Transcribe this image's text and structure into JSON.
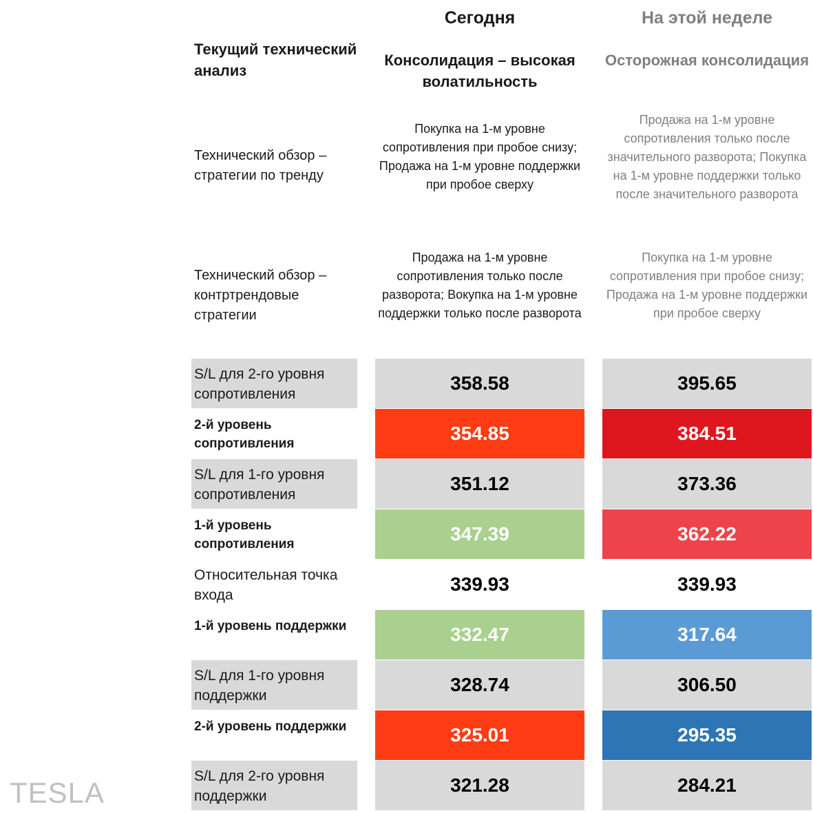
{
  "columns": {
    "today": "Сегодня",
    "week": "На этой неделе"
  },
  "section_title": "Текущий технический анализ",
  "modes": {
    "today": "Консолидация – высокая волатильность",
    "week": "Осторожная консолидация"
  },
  "strategies": [
    {
      "label": "Технический обзор – стратегии по тренду",
      "today": "Покупка на 1-м уровне сопротивления при пробое снизу; Продажа на 1-м уровне поддержки при пробое сверху",
      "week": "Продажа на 1-м уровне сопротивления только после значительного разворота; Покупка на 1-м уровне поддержки только после значительного разворота"
    },
    {
      "label": "Технический обзор – контртрендовые стратегии",
      "today": "Продажа на 1-м уровне сопротивления только после разворота; Вокупка на 1-м уровне поддержки только после разворота",
      "week": "Покупка на 1-м уровне сопротивления при пробое снизу; Продажа на 1-м уровне поддержки при пробое сверху"
    }
  ],
  "levels": [
    {
      "label": "S/L для 2-го уровня сопротивления",
      "bold": false,
      "today": "358.58",
      "week": "395.65",
      "today_bg": "#d9d9d9",
      "today_fg": "#000000",
      "week_bg": "#d9d9d9",
      "week_fg": "#000000",
      "label_bg": "#d9d9d9"
    },
    {
      "label": "2-й уровень сопротивления",
      "bold": true,
      "today": "354.85",
      "week": "384.51",
      "today_bg": "#ff3c14",
      "today_fg": "#ffffff",
      "week_bg": "#e0161f",
      "week_fg": "#ffffff",
      "label_bg": "#ffffff"
    },
    {
      "label": "S/L для 1-го уровня сопротивления",
      "bold": false,
      "today": "351.12",
      "week": "373.36",
      "today_bg": "#d9d9d9",
      "today_fg": "#000000",
      "week_bg": "#d9d9d9",
      "week_fg": "#000000",
      "label_bg": "#d9d9d9"
    },
    {
      "label": "1-й уровень сопротивления",
      "bold": true,
      "today": "347.39",
      "week": "362.22",
      "today_bg": "#a9d08e",
      "today_fg": "#ffffff",
      "week_bg": "#ee434a",
      "week_fg": "#ffffff",
      "label_bg": "#ffffff"
    },
    {
      "label": "Относительная точка входа",
      "bold": false,
      "today": "339.93",
      "week": "339.93",
      "today_bg": "#ffffff",
      "today_fg": "#000000",
      "week_bg": "#ffffff",
      "week_fg": "#000000",
      "label_bg": "#ffffff"
    },
    {
      "label": "1-й уровень поддержки",
      "bold": true,
      "today": "332.47",
      "week": "317.64",
      "today_bg": "#a9d08e",
      "today_fg": "#ffffff",
      "week_bg": "#5b9bd5",
      "week_fg": "#ffffff",
      "label_bg": "#ffffff"
    },
    {
      "label": "S/L для 1-го уровня поддержки",
      "bold": false,
      "today": "328.74",
      "week": "306.50",
      "today_bg": "#d9d9d9",
      "today_fg": "#000000",
      "week_bg": "#d9d9d9",
      "week_fg": "#000000",
      "label_bg": "#d9d9d9"
    },
    {
      "label": "2-й уровень поддержки",
      "bold": true,
      "today": "325.01",
      "week": "295.35",
      "today_bg": "#ff3c14",
      "today_fg": "#ffffff",
      "week_bg": "#2e75b6",
      "week_fg": "#ffffff",
      "label_bg": "#ffffff"
    },
    {
      "label": "S/L для 2-го уровня поддержки",
      "bold": false,
      "today": "321.28",
      "week": "284.21",
      "today_bg": "#d9d9d9",
      "today_fg": "#000000",
      "week_bg": "#d9d9d9",
      "week_fg": "#000000",
      "label_bg": "#d9d9d9"
    }
  ],
  "brand": "TESLA"
}
